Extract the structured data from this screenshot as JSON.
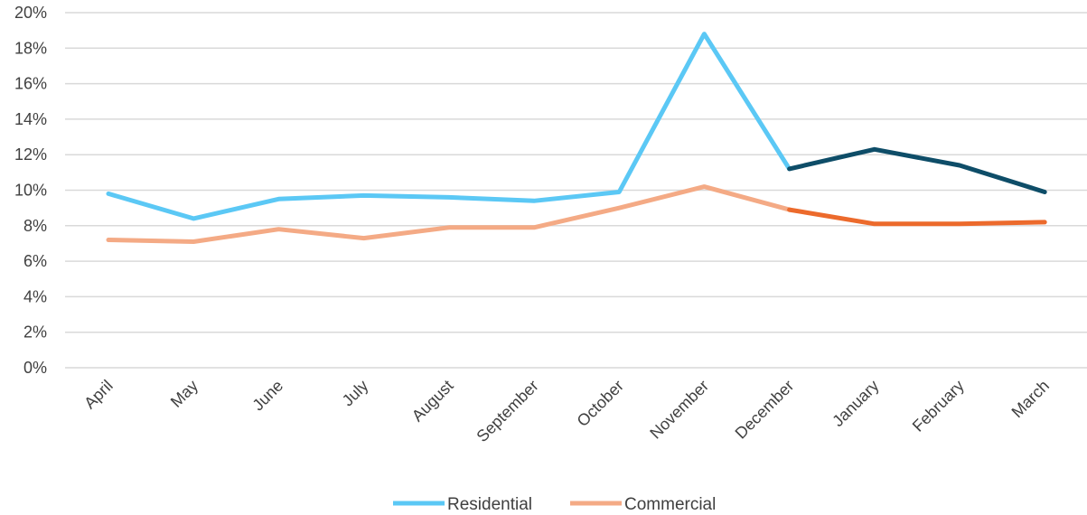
{
  "chart_data": {
    "type": "line",
    "title": "",
    "xlabel": "",
    "ylabel": "",
    "categories": [
      "April",
      "May",
      "June",
      "July",
      "August",
      "September",
      "October",
      "November",
      "December",
      "January",
      "February",
      "March"
    ],
    "y_ticks": [
      "0%",
      "2%",
      "4%",
      "6%",
      "8%",
      "10%",
      "12%",
      "14%",
      "16%",
      "18%",
      "20%"
    ],
    "ylim": [
      0,
      20
    ],
    "y_unit": "percent",
    "grid": true,
    "legend_position": "bottom",
    "highlight_from_category": "December",
    "series": [
      {
        "name": "Residential",
        "color": "#5BC8F5",
        "highlight_color": "#0E4D68",
        "values": [
          9.8,
          8.4,
          9.5,
          9.7,
          9.6,
          9.4,
          9.9,
          18.8,
          11.2,
          12.3,
          11.4,
          9.9
        ]
      },
      {
        "name": "Commercial",
        "color": "#F4AA85",
        "highlight_color": "#EC6A2C",
        "values": [
          7.2,
          7.1,
          7.8,
          7.3,
          7.9,
          7.9,
          9.0,
          10.2,
          8.9,
          8.1,
          8.1,
          8.2
        ]
      }
    ]
  }
}
